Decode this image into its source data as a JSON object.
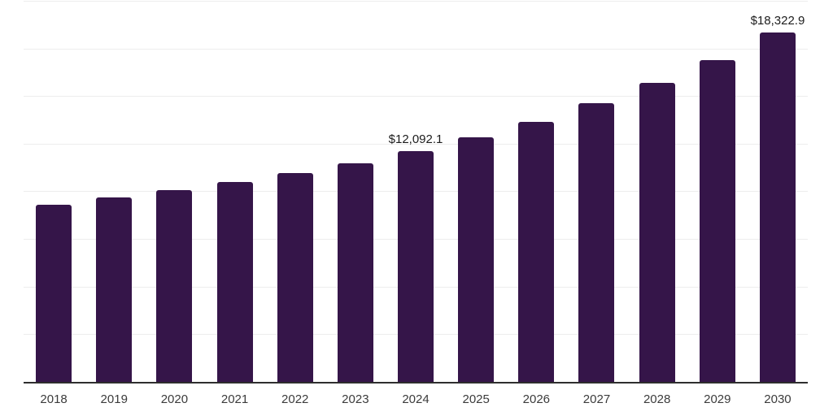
{
  "chart_data": {
    "type": "bar",
    "title": "",
    "xlabel": "",
    "ylabel": "",
    "categories": [
      "2018",
      "2019",
      "2020",
      "2021",
      "2022",
      "2023",
      "2024",
      "2025",
      "2026",
      "2027",
      "2028",
      "2029",
      "2030"
    ],
    "values": [
      9300,
      9700,
      10080,
      10510,
      10950,
      11470,
      12092.1,
      12840,
      13660,
      14610,
      15680,
      16880,
      18322.9
    ],
    "data_labels": [
      null,
      null,
      null,
      null,
      null,
      null,
      "$12,092.1",
      null,
      null,
      null,
      null,
      null,
      "$18,322.9"
    ],
    "currency_prefix": "$",
    "ylim": [
      0,
      20000
    ],
    "grid_interval": 2500,
    "grid": true,
    "legend": false,
    "y_axis_tick_labels_visible": false,
    "colors": {
      "bar": "#351549",
      "axis_line": "#2e2e2e",
      "gridline": "#ededed",
      "data_label_text": "#1c1c1c",
      "tick_label_text": "#3b3b3b",
      "background": "#ffffff"
    }
  }
}
